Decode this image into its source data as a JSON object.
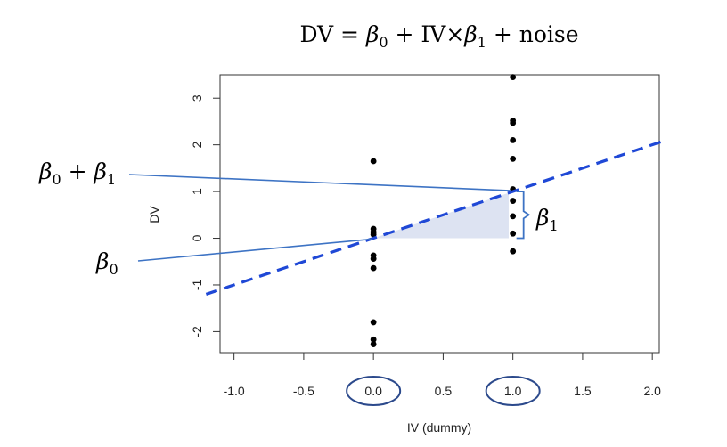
{
  "equation": {
    "prefix": "DV = ",
    "beta": "β",
    "sub0": "0",
    "mid": " + IV×",
    "sub1": "1",
    "suffix": " + noise"
  },
  "annotations": {
    "beta": "β",
    "plus": " + ",
    "sub0": "0",
    "sub1": "1"
  },
  "colors": {
    "fit_line": "#1f48d6",
    "pointer_line": "#3d73c4",
    "shade": "#dde3f2",
    "points": "#000000",
    "circle": "#2c4a8c"
  },
  "chart_data": {
    "type": "scatter",
    "xlabel": "IV (dummy)",
    "ylabel": "DV",
    "xlim": [
      -1.1,
      2.05
    ],
    "ylim": [
      -2.45,
      3.5
    ],
    "x_ticks": [
      -1.0,
      -0.5,
      0.0,
      0.5,
      1.0,
      1.5,
      2.0
    ],
    "x_tick_labels": [
      "-1.0",
      "-0.5",
      "0.0",
      "0.5",
      "1.0",
      "1.5",
      "2.0"
    ],
    "y_ticks": [
      -2,
      -1,
      0,
      1,
      2,
      3
    ],
    "y_tick_labels": [
      "-2",
      "-1",
      "0",
      "1",
      "2",
      "3"
    ],
    "circled_x_ticks": [
      0.0,
      1.0
    ],
    "points": [
      {
        "x": 0,
        "y": 1.65
      },
      {
        "x": 0,
        "y": 0.2
      },
      {
        "x": 0,
        "y": 0.13
      },
      {
        "x": 0,
        "y": 0.08
      },
      {
        "x": 0,
        "y": -0.37
      },
      {
        "x": 0,
        "y": -0.44
      },
      {
        "x": 0,
        "y": -0.64
      },
      {
        "x": 0,
        "y": -1.8
      },
      {
        "x": 0,
        "y": -2.17
      },
      {
        "x": 0,
        "y": -2.27
      },
      {
        "x": 1,
        "y": 3.45
      },
      {
        "x": 1,
        "y": 2.52
      },
      {
        "x": 1,
        "y": 2.47
      },
      {
        "x": 1,
        "y": 2.1
      },
      {
        "x": 1,
        "y": 1.7
      },
      {
        "x": 1,
        "y": 1.05
      },
      {
        "x": 1,
        "y": 0.8
      },
      {
        "x": 1,
        "y": 0.47
      },
      {
        "x": 1,
        "y": 0.1
      },
      {
        "x": 1,
        "y": -0.28
      }
    ],
    "fit_line": {
      "intercept": 0.0,
      "slope": 1.0,
      "style": "dashed"
    }
  }
}
